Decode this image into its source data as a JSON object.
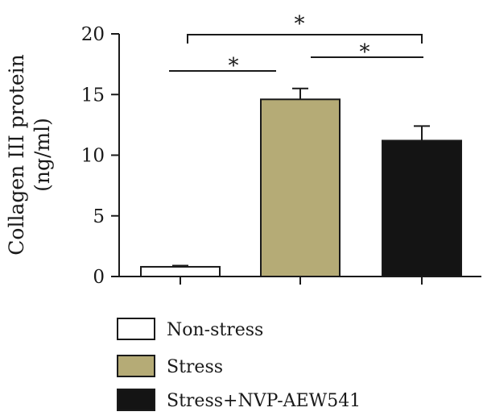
{
  "chart_data": {
    "type": "bar",
    "categories": [
      "Non-stress",
      "Stress",
      "Stress+NVP-AEW541"
    ],
    "values": [
      0.8,
      14.6,
      11.2
    ],
    "errors": [
      0.1,
      0.9,
      1.2
    ],
    "colors": [
      "#ffffff",
      "#b5ab76",
      "#141414"
    ],
    "edge_color": "#1a1a1a",
    "ylabel_line1": "Collagen III protein",
    "ylabel_line2": "(ng/ml)",
    "ylim": [
      0,
      20
    ],
    "yticks": [
      "0",
      "5",
      "10",
      "15",
      "20"
    ],
    "legend": {
      "placement": "bottom-left",
      "entries": [
        "Non-stress",
        "Stress",
        "Stress+NVP-AEW541"
      ]
    },
    "significance": [
      {
        "from": 0,
        "to": 1,
        "label": "*"
      },
      {
        "from": 1,
        "to": 2,
        "label": "*"
      },
      {
        "from": 0,
        "to": 2,
        "label": "*"
      }
    ],
    "grid": false
  }
}
